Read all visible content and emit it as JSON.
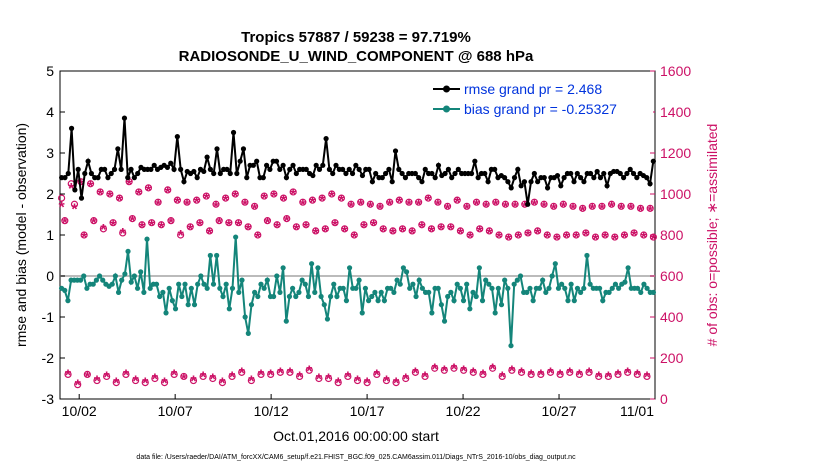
{
  "chart_data": {
    "type": "line",
    "title_line1": "Tropics 57887 / 59238 = 97.719%",
    "title_line2": "RADIOSONDE_U_WIND_COMPONENT @ 688 hPa",
    "xlabel": "Oct.01,2016 00:00:00 start",
    "ylabel_left": "rmse and bias (model - observation)",
    "ylabel_right": "# of obs: o=possible; ∗=assimilated",
    "footer": "data file: /Users/raeder/DAI/ATM_forcXX/CAM6_setup/f.e21.FHIST_BGC.f09_025.CAM6assim.011/Diags_NTrS_2016-10/obs_diag_output.nc",
    "x_ticks": [
      {
        "value": 1.5,
        "label": "10/02"
      },
      {
        "value": 6.5,
        "label": "10/07"
      },
      {
        "value": 11.5,
        "label": "10/12"
      },
      {
        "value": 16.5,
        "label": "10/17"
      },
      {
        "value": 21.5,
        "label": "10/22"
      },
      {
        "value": 26.5,
        "label": "10/27"
      },
      {
        "value": 31.5,
        "label": "11/01"
      }
    ],
    "xlim": [
      0.5,
      31.5
    ],
    "ylim_left": [
      -3,
      5
    ],
    "ylim_right": [
      0,
      1600
    ],
    "y_ticks_left": [
      "-3",
      "-2",
      "-1",
      "0",
      "1",
      "2",
      "3",
      "4",
      "5"
    ],
    "y_ticks_right": [
      "0",
      "200",
      "400",
      "600",
      "800",
      "1000",
      "1200",
      "1400",
      "1600"
    ],
    "colors": {
      "rmse": "#000000",
      "bias": "#14857a",
      "obs": "#cc1166",
      "legend_text": "#0033dd",
      "zero_line": "#bbbbbb"
    },
    "legend": [
      {
        "label": "rmse grand pr = 2.468",
        "series": "rmse"
      },
      {
        "label": "bias grand pr = -0.25327",
        "series": "bias"
      }
    ],
    "series": [
      {
        "name": "rmse",
        "axis": "left",
        "values": [
          2.4,
          2.4,
          2.5,
          3.6,
          2.1,
          2.6,
          1.9,
          2.5,
          2.8,
          2.5,
          2.4,
          2.4,
          2.6,
          2.6,
          2.4,
          2.5,
          2.6,
          3.1,
          2.6,
          3.85,
          2.4,
          2.6,
          2.4,
          2.5,
          2.65,
          2.6,
          2.6,
          2.6,
          2.7,
          2.6,
          2.65,
          2.7,
          2.65,
          2.75,
          2.6,
          3.4,
          2.6,
          2.3,
          2.55,
          2.5,
          2.55,
          2.4,
          2.6,
          2.55,
          2.9,
          2.6,
          2.5,
          3.1,
          2.5,
          2.6,
          2.6,
          2.5,
          3.5,
          2.5,
          2.8,
          3.1,
          2.4,
          2.7,
          2.7,
          2.8,
          2.4,
          2.4,
          2.7,
          2.6,
          2.8,
          2.8,
          2.6,
          2.7,
          2.4,
          2.6,
          2.7,
          2.5,
          2.6,
          2.6,
          2.6,
          2.5,
          2.45,
          2.7,
          2.6,
          2.7,
          3.35,
          2.6,
          2.5,
          2.7,
          2.6,
          2.6,
          2.5,
          2.6,
          2.5,
          2.7,
          2.6,
          2.45,
          2.6,
          2.6,
          2.3,
          2.5,
          2.4,
          2.4,
          2.5,
          2.6,
          2.3,
          3.05,
          2.6,
          2.5,
          2.4,
          2.5,
          2.5,
          2.5,
          2.4,
          2.3,
          2.6,
          2.5,
          2.5,
          2.4,
          2.7,
          2.45,
          2.5,
          2.6,
          2.4,
          2.5,
          2.6,
          2.5,
          2.5,
          2.5,
          2.5,
          2.8,
          2.4,
          2.5,
          2.5,
          2.3,
          2.6,
          2.6,
          2.4,
          2.45,
          2.4,
          2.3,
          2.15,
          2.4,
          2.6,
          2.2,
          2.3,
          1.75,
          2.3,
          2.5,
          2.3,
          2.4,
          2.4,
          2.15,
          2.4,
          2.4,
          2.45,
          2.2,
          2.4,
          2.5,
          2.5,
          2.3,
          2.5,
          2.4,
          2.3,
          2.5,
          2.5,
          2.4,
          2.55,
          2.4,
          2.5,
          2.2,
          2.5,
          2.55,
          2.55,
          2.5,
          2.4,
          2.5,
          2.6,
          2.5,
          2.4,
          2.5,
          2.45,
          2.4,
          2.25,
          2.8
        ]
      },
      {
        "name": "bias",
        "axis": "left",
        "values": [
          -0.3,
          -0.35,
          -0.6,
          -0.1,
          -0.1,
          -0.1,
          -0.1,
          0.0,
          -0.3,
          -0.2,
          -0.2,
          -0.1,
          0.0,
          -0.1,
          -0.2,
          -0.25,
          -0.2,
          0.0,
          -0.4,
          -0.1,
          0.05,
          0.6,
          -0.15,
          0.0,
          -0.3,
          0.1,
          -0.4,
          0.9,
          -0.3,
          -0.2,
          -0.2,
          -0.5,
          -0.4,
          -0.9,
          -0.3,
          -0.6,
          -0.8,
          -0.2,
          -0.5,
          -0.2,
          -0.7,
          -0.3,
          -0.7,
          -0.2,
          0.0,
          -0.2,
          -0.3,
          0.5,
          -0.2,
          0.5,
          -0.3,
          -0.5,
          -0.2,
          -0.8,
          -0.3,
          0.95,
          -0.4,
          -0.1,
          -1.0,
          -1.4,
          -0.7,
          -0.4,
          -0.5,
          -0.2,
          -0.3,
          -0.1,
          -0.5,
          -0.5,
          0.0,
          -0.4,
          0.2,
          -1.1,
          -0.5,
          -0.3,
          -0.5,
          -0.4,
          -0.1,
          -0.2,
          -0.5,
          0.3,
          -0.4,
          0.2,
          -0.5,
          -0.7,
          -1.05,
          -0.5,
          -0.2,
          -0.5,
          -0.3,
          -0.3,
          -0.6,
          0.2,
          -0.3,
          -0.3,
          -0.1,
          -0.9,
          -0.3,
          -0.6,
          -0.5,
          -0.4,
          -0.6,
          -0.4,
          -0.6,
          -0.3,
          -0.3,
          -0.4,
          -0.1,
          -0.2,
          0.2,
          0.1,
          -0.3,
          -0.2,
          -0.5,
          -0.1,
          -0.3,
          -0.4,
          -0.4,
          -0.9,
          -0.3,
          -0.3,
          -0.7,
          -1.1,
          -0.5,
          -0.4,
          -0.6,
          -0.2,
          -0.3,
          -0.6,
          -0.2,
          -0.8,
          -0.4,
          -0.5,
          0.2,
          -0.6,
          -0.1,
          -0.2,
          -0.3,
          -0.9,
          -0.3,
          -0.7,
          -0.1,
          -0.3,
          -1.7,
          -0.2,
          -0.1,
          0.0,
          -0.4,
          -0.4,
          -0.3,
          -0.6,
          -0.3,
          -0.3,
          -0.1,
          -0.4,
          -0.3,
          0.0,
          0.3,
          -0.3,
          -0.2,
          -0.3,
          -0.6,
          -0.2,
          -0.6,
          -0.3,
          -0.4,
          -0.3,
          0.5,
          -0.2,
          -0.3,
          -0.3,
          -0.3,
          -0.6,
          -0.4,
          -0.4,
          -0.3,
          -0.2,
          -0.3,
          -0.2,
          -0.15,
          0.2,
          -0.3,
          -0.3,
          -0.3,
          -0.4,
          -0.2,
          -0.3,
          -0.4,
          -0.4
        ]
      },
      {
        "name": "obs_possible",
        "axis": "right",
        "values": [
          980,
          870,
          120,
          1050,
          950,
          70,
          1060,
          800,
          120,
          1050,
          870,
          90,
          1010,
          830,
          110,
          1000,
          860,
          80,
          980,
          810,
          120,
          1060,
          880,
          90,
          1010,
          850,
          80,
          1030,
          860,
          100,
          960,
          850,
          80,
          1020,
          870,
          120,
          970,
          800,
          110,
          960,
          840,
          90,
          970,
          860,
          110,
          990,
          820,
          100,
          950,
          870,
          80,
          980,
          860,
          110,
          1000,
          860,
          130,
          960,
          840,
          90,
          940,
          800,
          120,
          990,
          870,
          120,
          1000,
          850,
          130,
          980,
          880,
          130,
          1010,
          840,
          110,
          960,
          850,
          140,
          970,
          820,
          100,
          980,
          830,
          100,
          1000,
          860,
          80,
          980,
          830,
          110,
          950,
          800,
          90,
          960,
          850,
          80,
          950,
          860,
          120,
          940,
          830,
          90,
          960,
          820,
          80,
          970,
          830,
          100,
          960,
          820,
          130,
          960,
          850,
          110,
          980,
          830,
          150,
          960,
          840,
          140,
          940,
          840,
          150,
          970,
          820,
          140,
          940,
          800,
          130,
          960,
          830,
          120,
          950,
          820,
          150,
          960,
          800,
          110,
          950,
          790,
          140,
          950,
          800,
          130,
          950,
          810,
          120,
          960,
          820,
          120,
          950,
          800,
          130,
          940,
          790,
          120,
          950,
          800,
          130,
          940,
          800,
          120,
          930,
          810,
          130,
          940,
          790,
          110,
          940,
          800,
          110,
          950,
          790,
          120,
          940,
          800,
          130,
          940,
          810,
          120,
          930,
          800,
          110,
          930,
          790
        ]
      },
      {
        "name": "obs_assimilated",
        "axis": "right",
        "values": [
          940,
          860,
          120,
          1030,
          930,
          70,
          1050,
          790,
          110,
          1040,
          860,
          90,
          1000,
          830,
          110,
          990,
          850,
          80,
          970,
          810,
          120,
          1050,
          870,
          90,
          1000,
          840,
          80,
          1020,
          850,
          100,
          950,
          840,
          80,
          1010,
          860,
          120,
          960,
          800,
          100,
          950,
          830,
          90,
          960,
          850,
          110,
          980,
          810,
          100,
          940,
          860,
          80,
          970,
          850,
          110,
          990,
          850,
          130,
          950,
          830,
          90,
          930,
          790,
          120,
          980,
          860,
          120,
          990,
          840,
          130,
          970,
          870,
          130,
          1000,
          830,
          110,
          950,
          840,
          140,
          960,
          810,
          100,
          970,
          820,
          100,
          990,
          850,
          80,
          970,
          820,
          110,
          940,
          790,
          90,
          950,
          840,
          80,
          940,
          850,
          120,
          930,
          820,
          90,
          950,
          810,
          80,
          960,
          820,
          100,
          950,
          810,
          130,
          950,
          840,
          110,
          970,
          820,
          150,
          950,
          830,
          140,
          930,
          830,
          150,
          960,
          810,
          140,
          930,
          790,
          130,
          950,
          820,
          120,
          940,
          810,
          150,
          950,
          790,
          110,
          940,
          780,
          140,
          940,
          790,
          130,
          940,
          800,
          120,
          950,
          810,
          120,
          940,
          790,
          130,
          930,
          780,
          120,
          940,
          790,
          130,
          930,
          790,
          120,
          920,
          800,
          130,
          930,
          780,
          110,
          930,
          790,
          110,
          940,
          780,
          120,
          930,
          790,
          130,
          930,
          800,
          120,
          920,
          790,
          110,
          920,
          780
        ]
      }
    ]
  }
}
